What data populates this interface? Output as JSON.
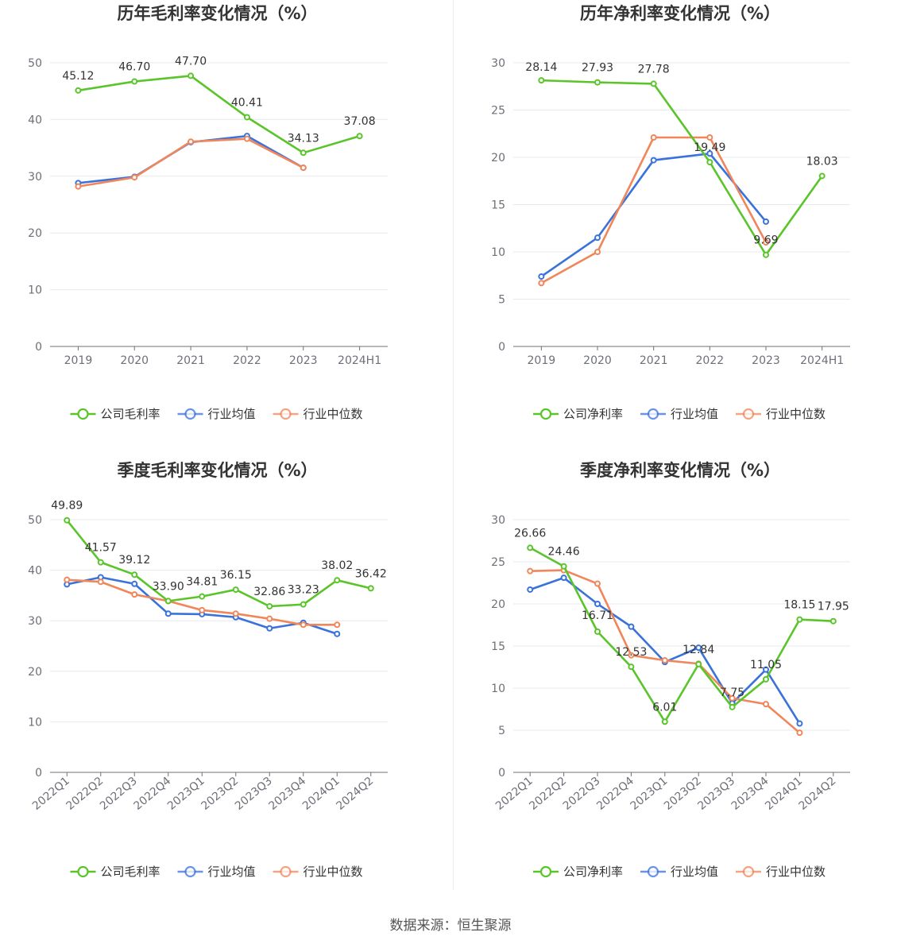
{
  "footer": "数据来源：恒生聚源",
  "colors": {
    "company": "#5ac52a",
    "avg": "#3a72db",
    "median": "#f0865a",
    "grid": "#e6e8ee",
    "axis": "#6e7079"
  },
  "chart_data": [
    {
      "type": "line",
      "title": "历年毛利率变化情况（%）",
      "categories": [
        "2019",
        "2020",
        "2021",
        "2022",
        "2023",
        "2024H1"
      ],
      "ylim": [
        0,
        50
      ],
      "yticks": [
        0,
        10,
        20,
        30,
        40,
        50
      ],
      "legend_position": "bottom",
      "series": [
        {
          "name": "公司毛利率",
          "key": "company",
          "values": [
            45.12,
            46.7,
            47.7,
            40.41,
            34.13,
            37.08
          ],
          "labels": [
            "45.12",
            "46.70",
            "47.70",
            "40.41",
            "34.13",
            "37.08"
          ]
        },
        {
          "name": "行业均值",
          "key": "avg",
          "values": [
            28.8,
            29.9,
            36.0,
            37.1,
            31.5,
            null
          ]
        },
        {
          "name": "行业中位数",
          "key": "median",
          "values": [
            28.2,
            29.8,
            36.1,
            36.6,
            31.5,
            null
          ]
        }
      ]
    },
    {
      "type": "line",
      "title": "历年净利率变化情况（%）",
      "categories": [
        "2019",
        "2020",
        "2021",
        "2022",
        "2023",
        "2024H1"
      ],
      "ylim": [
        0,
        30
      ],
      "yticks": [
        0,
        5,
        10,
        15,
        20,
        25,
        30
      ],
      "legend_position": "bottom",
      "series": [
        {
          "name": "公司净利率",
          "key": "company",
          "values": [
            28.14,
            27.93,
            27.78,
            19.49,
            9.69,
            18.03
          ],
          "labels": [
            "28.14",
            "27.93",
            "27.78",
            "19.49",
            "9.69",
            "18.03"
          ]
        },
        {
          "name": "行业均值",
          "key": "avg",
          "values": [
            7.4,
            11.5,
            19.7,
            20.4,
            13.2,
            null
          ]
        },
        {
          "name": "行业中位数",
          "key": "median",
          "values": [
            6.7,
            10.0,
            22.1,
            22.1,
            11.0,
            null
          ]
        }
      ]
    },
    {
      "type": "line",
      "title": "季度毛利率变化情况（%）",
      "categories": [
        "2022Q1",
        "2022Q2",
        "2022Q3",
        "2022Q4",
        "2023Q1",
        "2023Q2",
        "2023Q3",
        "2023Q4",
        "2024Q1",
        "2024Q2"
      ],
      "ylim": [
        0,
        50
      ],
      "yticks": [
        0,
        10,
        20,
        30,
        40,
        50
      ],
      "legend_position": "bottom",
      "series": [
        {
          "name": "公司毛利率",
          "key": "company",
          "values": [
            49.89,
            41.57,
            39.12,
            33.9,
            34.81,
            36.15,
            32.86,
            33.23,
            38.02,
            36.42
          ],
          "labels": [
            "49.89",
            "41.57",
            "39.12",
            "33.90",
            "34.81",
            "36.15",
            "32.86",
            "33.23",
            "38.02",
            "36.42"
          ]
        },
        {
          "name": "行业均值",
          "key": "avg",
          "values": [
            37.2,
            38.6,
            37.3,
            31.4,
            31.3,
            30.7,
            28.5,
            29.6,
            27.4,
            null
          ]
        },
        {
          "name": "行业中位数",
          "key": "median",
          "values": [
            38.1,
            37.7,
            35.2,
            33.9,
            32.1,
            31.4,
            30.4,
            29.2,
            29.2,
            null
          ]
        }
      ]
    },
    {
      "type": "line",
      "title": "季度净利率变化情况（%）",
      "categories": [
        "2022Q1",
        "2022Q2",
        "2022Q3",
        "2022Q4",
        "2023Q1",
        "2023Q2",
        "2023Q3",
        "2023Q4",
        "2024Q1",
        "2024Q2"
      ],
      "ylim": [
        0,
        30
      ],
      "yticks": [
        0,
        5,
        10,
        15,
        20,
        25,
        30
      ],
      "legend_position": "bottom",
      "series": [
        {
          "name": "公司净利率",
          "key": "company",
          "values": [
            26.66,
            24.46,
            16.71,
            12.53,
            6.01,
            12.84,
            7.75,
            11.05,
            18.15,
            17.95
          ],
          "labels": [
            "26.66",
            "24.46",
            "16.71",
            "12.53",
            "6.01",
            "12.84",
            "7.75",
            "11.05",
            "18.15",
            "17.95"
          ]
        },
        {
          "name": "行业均值",
          "key": "avg",
          "values": [
            21.7,
            23.1,
            20.0,
            17.3,
            13.1,
            14.8,
            8.2,
            12.2,
            5.8,
            null
          ]
        },
        {
          "name": "行业中位数",
          "key": "median",
          "values": [
            23.9,
            24.0,
            22.4,
            13.9,
            13.3,
            12.9,
            8.8,
            8.1,
            4.7,
            null
          ]
        }
      ]
    }
  ]
}
